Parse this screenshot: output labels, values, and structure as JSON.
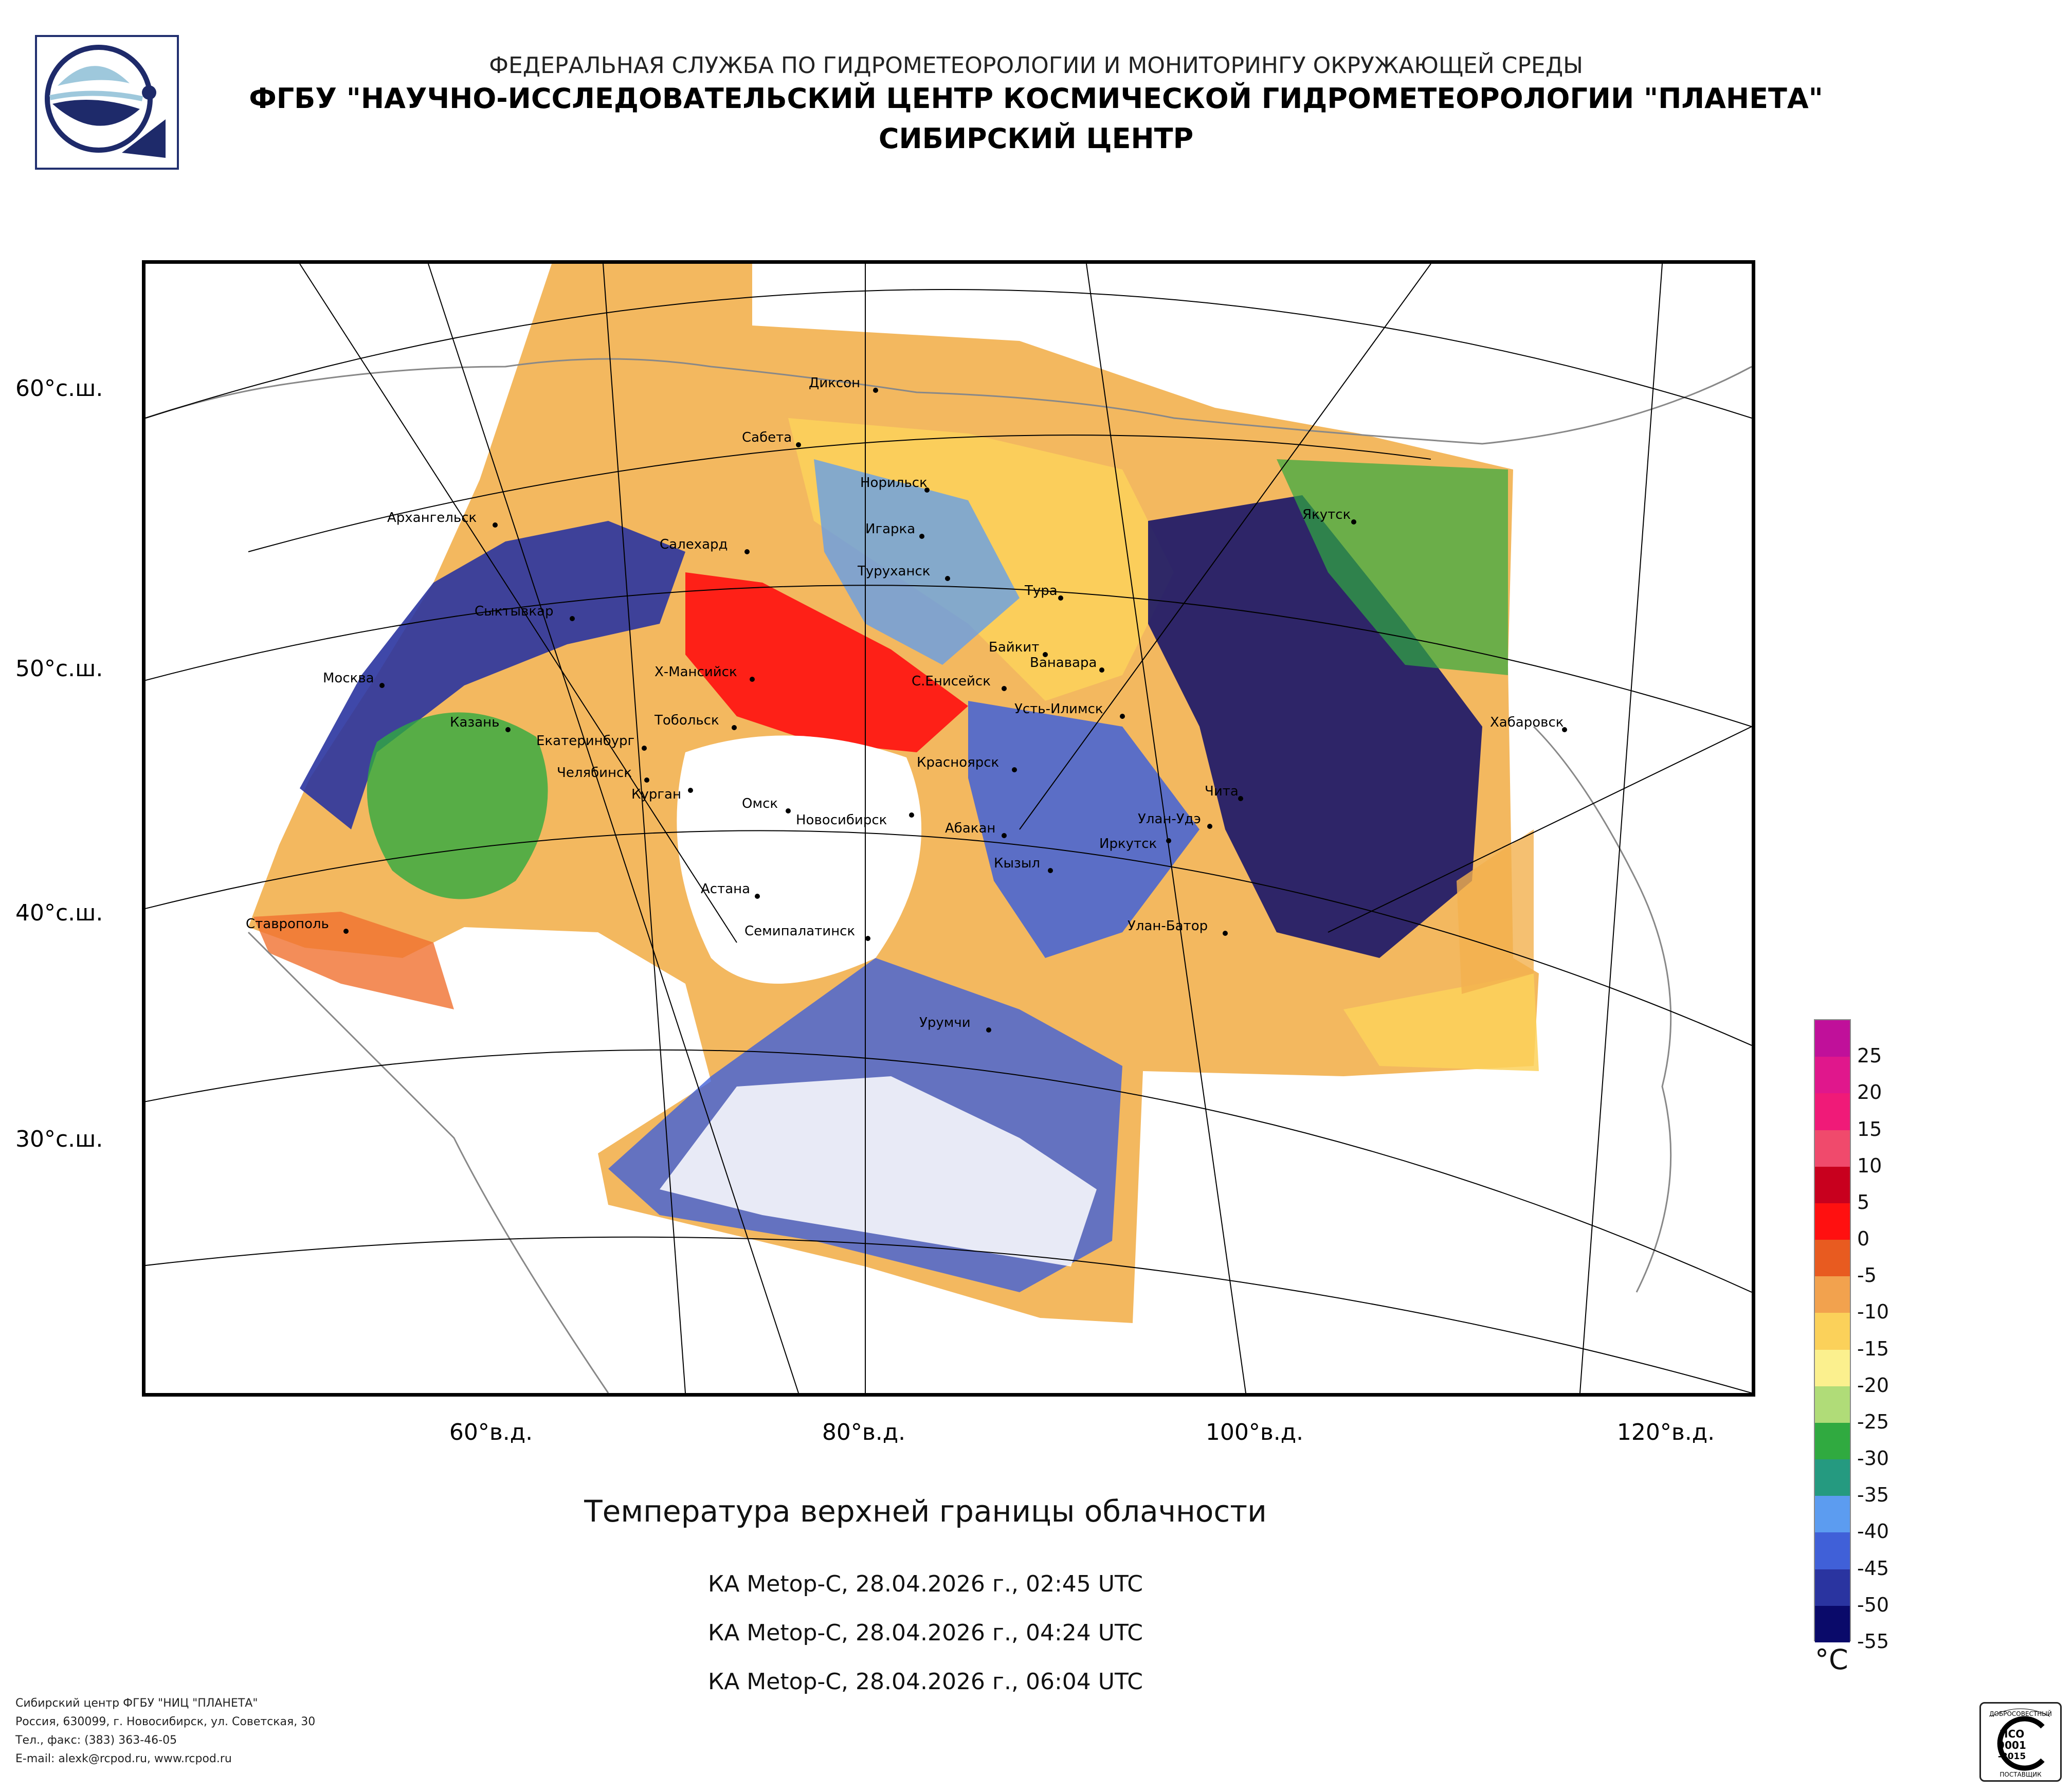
{
  "header": {
    "line1": "ФЕДЕРАЛЬНАЯ СЛУЖБА ПО ГИДРОМЕТЕОРОЛОГИИ И МОНИТОРИНГУ ОКРУЖАЮЩЕЙ СРЕДЫ",
    "line2": "ФГБУ \"НАУЧНО-ИССЛЕДОВАТЕЛЬСКИЙ ЦЕНТР КОСМИЧЕСКОЙ ГИДРОМЕТЕОРОЛОГИИ \"ПЛАНЕТА\"",
    "line3": "СИБИРСКИЙ ЦЕНТР"
  },
  "map": {
    "latitude_labels": [
      "60°с.ш.",
      "50°с.ш.",
      "40°с.ш.",
      "30°с.ш."
    ],
    "longitude_labels": [
      "60°в.д.",
      "80°в.д.",
      "100°в.д.",
      "120°в.д."
    ],
    "cities": [
      "Диксон",
      "Сабета",
      "Норильск",
      "Архангельск",
      "Салехард",
      "Игарка",
      "Якутск",
      "Туруханск",
      "Тура",
      "Сыктывкар",
      "Байкит",
      "Ванавара",
      "Москва",
      "Х-Мансийск",
      "С.Енисейск",
      "Усть-Илимск",
      "Казань",
      "Тобольск",
      "Хабаровск",
      "Екатеринбург",
      "Красноярск",
      "Челябинск",
      "Курган",
      "Чита",
      "Омск",
      "Новосибирск",
      "Улан-Удэ",
      "Абакан",
      "Иркутск",
      "Кызыл",
      "Астана",
      "Ставрополь",
      "Семипалатинск",
      "Улан-Батор",
      "Урумчи"
    ]
  },
  "product": {
    "title": "Температура верхней границы облачности",
    "passes": [
      "КА Metop-C, 28.04.2026 г., 02:45 UTC",
      "КА Metop-C, 28.04.2026 г., 04:24 UTC",
      "КА Metop-C, 28.04.2026 г., 06:04 UTC"
    ]
  },
  "legend": {
    "unit": "°C",
    "tick_labels": [
      "25",
      "20",
      "15",
      "10",
      "5",
      "0",
      "-5",
      "-10",
      "-15",
      "-20",
      "-25",
      "-30",
      "-35",
      "-40",
      "-45",
      "-50",
      "-55"
    ],
    "colors": [
      "#c0109a",
      "#e0178c",
      "#f01a78",
      "#f04a6c",
      "#c8001e",
      "#ff1010",
      "#e85b20",
      "#f2a24e",
      "#fbd15a",
      "#fbf08e",
      "#b0dc78",
      "#30aa40",
      "#259a80",
      "#5c9cf0",
      "#4060d8",
      "#2a34a0",
      "#0a0a6a"
    ]
  },
  "footer": {
    "lines": [
      "Сибирский центр ФГБУ \"НИЦ \"ПЛАНЕТА\"",
      "Россия, 630099, г. Новосибирск, ул. Советская, 30",
      "Тел., факс: (383) 363-46-05",
      "E-mail: alexk@rcpod.ru, www.rcpod.ru"
    ],
    "certificate_text": [
      "ДОБРОСОВЕСТНЫЙ",
      "ИСО",
      "9001",
      "-2015",
      "ПОСТАВЩИК"
    ]
  }
}
